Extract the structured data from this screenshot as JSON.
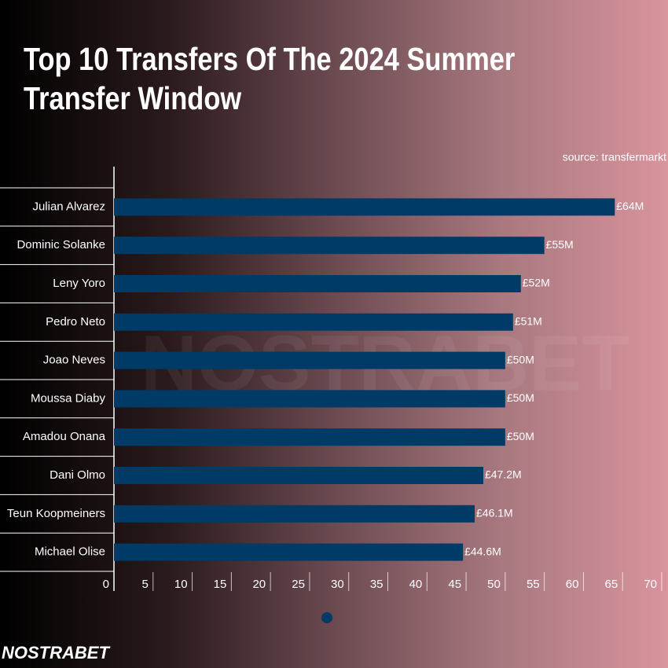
{
  "chart_data": {
    "type": "bar",
    "orientation": "horizontal",
    "title": "Top 10 Transfers Of The 2024 Summer Transfer Window",
    "source": "source: transfermarkt",
    "logo": "NOSTRABET",
    "categories": [
      "Julian Alvarez",
      "Dominic Solanke",
      "Leny Yoro",
      "Pedro Neto",
      "Joao Neves",
      "Moussa Diaby",
      "Amadou Onana",
      "Dani Olmo",
      "Teun Koopmeiners",
      "Michael Olise"
    ],
    "values": [
      64,
      55,
      52,
      51,
      50,
      50,
      50,
      47.2,
      46.1,
      44.6
    ],
    "value_labels": [
      "£64M",
      "£55M",
      "£52M",
      "£51M",
      "£50M",
      "£50M",
      "£50M",
      "£47.2M",
      "£46.1M",
      "£44.6M"
    ],
    "color": "#003a66",
    "xlim": [
      0,
      70
    ],
    "xticks": [
      0,
      5,
      10,
      15,
      20,
      25,
      30,
      35,
      40,
      45,
      50,
      55,
      60,
      65,
      70
    ]
  }
}
